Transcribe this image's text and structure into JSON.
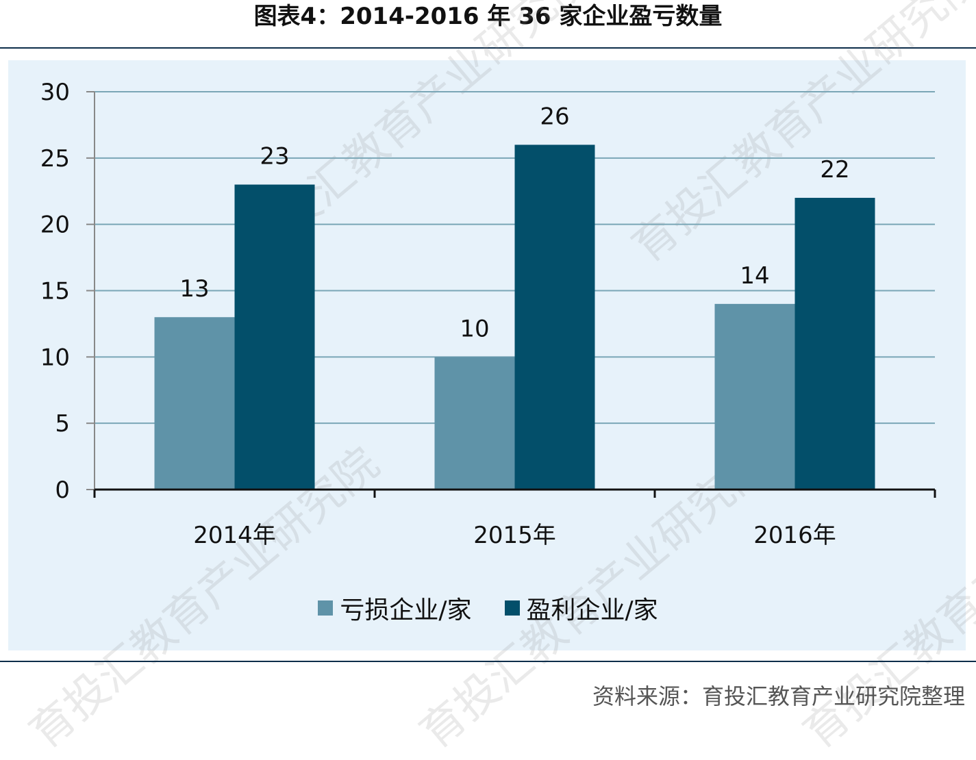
{
  "title": "图表4：2014-2016 年 36 家企业盈亏数量",
  "source": "资料来源：育投汇教育产业研究院整理",
  "watermark": "育投汇教育产业研究院",
  "colors": {
    "loss": "#5f93a8",
    "profit": "#034f6a",
    "grid": "#7aa6b6",
    "panel": "#e7f2fa",
    "rule": "#0d2d4a"
  },
  "chart_data": {
    "type": "bar",
    "categories": [
      "2014年",
      "2015年",
      "2016年"
    ],
    "series": [
      {
        "name": "亏损企业/家",
        "values": [
          13,
          10,
          14
        ]
      },
      {
        "name": "盈利企业/家",
        "values": [
          23,
          26,
          22
        ]
      }
    ],
    "ylim": [
      0,
      30
    ],
    "yticks": [
      0,
      5,
      10,
      15,
      20,
      25,
      30
    ],
    "grid": true,
    "legend": "bottom"
  }
}
